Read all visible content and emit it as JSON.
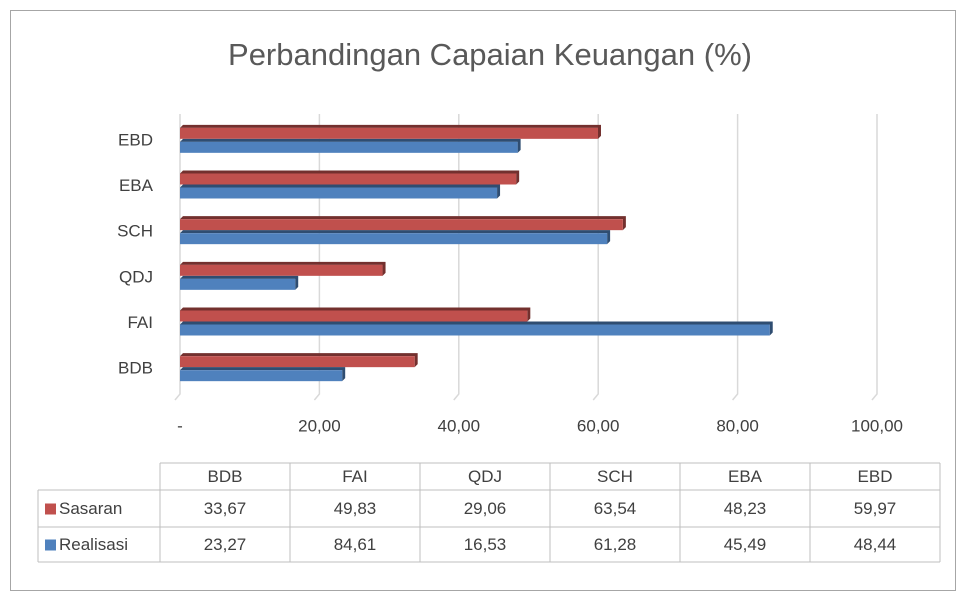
{
  "chart_data": {
    "type": "bar",
    "orientation": "horizontal",
    "title": "Perbandingan Capaian Keuangan (%)",
    "categories": [
      "BDB",
      "FAI",
      "QDJ",
      "SCH",
      "EBA",
      "EBD"
    ],
    "series": [
      {
        "name": "Sasaran",
        "color": "#c0504d",
        "values": [
          33.67,
          49.83,
          29.06,
          63.54,
          48.23,
          59.97
        ],
        "value_labels": [
          "33,67",
          "49,83",
          "29,06",
          "63,54",
          "48,23",
          "59,97"
        ]
      },
      {
        "name": "Realisasi",
        "color": "#4f81bd",
        "values": [
          23.27,
          84.61,
          16.53,
          61.28,
          45.49,
          48.44
        ],
        "value_labels": [
          "23,27",
          "84,61",
          "16,53",
          "61,28",
          "45,49",
          "48,44"
        ]
      }
    ],
    "xlim": [
      0,
      100
    ],
    "xticks": [
      {
        "value": 0,
        "label": "-"
      },
      {
        "value": 20,
        "label": "20,00"
      },
      {
        "value": 40,
        "label": "40,00"
      },
      {
        "value": 60,
        "label": "60,00"
      },
      {
        "value": 80,
        "label": "80,00"
      },
      {
        "value": 100,
        "label": "100,00"
      }
    ],
    "grid": true,
    "data_table": true
  }
}
